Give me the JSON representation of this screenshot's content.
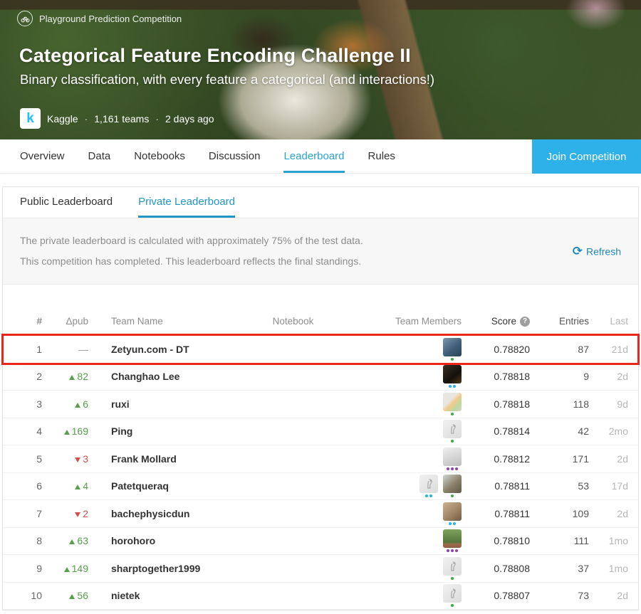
{
  "banner": {
    "category_label": "Playground Prediction Competition",
    "title": "Categorical Feature Encoding Challenge II",
    "subtitle": "Binary classification, with every feature a categorical (and interactions!)",
    "logo_letter": "k",
    "organizer": "Kaggle",
    "teams_count": "1,161 teams",
    "posted": "2 days ago"
  },
  "nav": {
    "tabs": [
      {
        "label": "Overview",
        "active": false
      },
      {
        "label": "Data",
        "active": false
      },
      {
        "label": "Notebooks",
        "active": false
      },
      {
        "label": "Discussion",
        "active": false
      },
      {
        "label": "Leaderboard",
        "active": true
      },
      {
        "label": "Rules",
        "active": false
      }
    ],
    "join_button": "Join Competition"
  },
  "leaderboard": {
    "tabs": [
      {
        "label": "Public Leaderboard",
        "active": false
      },
      {
        "label": "Private Leaderboard",
        "active": true
      }
    ],
    "info_lines": [
      "The private leaderboard is calculated with approximately 75% of the test data.",
      "This competition has completed. This leaderboard reflects the final standings."
    ],
    "refresh_label": "Refresh",
    "columns": {
      "rank": "#",
      "delta": "Δpub",
      "team": "Team Name",
      "notebook": "Notebook",
      "members": "Team Members",
      "score": "Score",
      "entries": "Entries",
      "last": "Last"
    },
    "rows": [
      {
        "rank": "1",
        "delta_dir": "none",
        "delta": "—",
        "team": "Zetyun.com - DT",
        "score": "0.78820",
        "entries": "87",
        "last": "21d",
        "highlight": true,
        "members": [
          {
            "type": "photo",
            "bg": "linear-gradient(140deg,#7d97ad,#3f5e7a 55%,#2b4257)",
            "dots": [
              "green"
            ]
          }
        ]
      },
      {
        "rank": "2",
        "delta_dir": "up",
        "delta": "82",
        "team": "Changhao Lee",
        "score": "0.78818",
        "entries": "9",
        "last": "2d",
        "highlight": false,
        "members": [
          {
            "type": "photo",
            "bg": "linear-gradient(140deg,#3a3026,#14100b 60%,#4d3b1e)",
            "dots": [
              "blue",
              "blue"
            ]
          }
        ]
      },
      {
        "rank": "3",
        "delta_dir": "up",
        "delta": "6",
        "team": "ruxi",
        "score": "0.78818",
        "entries": "118",
        "last": "9d",
        "highlight": false,
        "members": [
          {
            "type": "photo",
            "bg": "linear-gradient(135deg,#e9e6e1 40%,#f3c98a 55%,#bcd9a0 75%,#d8d4cf)",
            "dots": [
              "green"
            ]
          }
        ]
      },
      {
        "rank": "4",
        "delta_dir": "up",
        "delta": "169",
        "team": "Ping",
        "score": "0.78814",
        "entries": "42",
        "last": "2mo",
        "highlight": false,
        "members": [
          {
            "type": "default",
            "dots": [
              "green"
            ]
          }
        ]
      },
      {
        "rank": "5",
        "delta_dir": "down",
        "delta": "3",
        "team": "Frank Mollard",
        "score": "0.78812",
        "entries": "171",
        "last": "2d",
        "highlight": false,
        "members": [
          {
            "type": "photo",
            "bg": "linear-gradient(160deg,#efefef,#d2d2d2 60%,#bdbdbd)",
            "dots": [
              "purple",
              "purple",
              "purple"
            ]
          }
        ]
      },
      {
        "rank": "6",
        "delta_dir": "up",
        "delta": "4",
        "team": "Patetqueraq",
        "score": "0.78811",
        "entries": "53",
        "last": "17d",
        "highlight": false,
        "members": [
          {
            "type": "default",
            "dots": [
              "blue",
              "blue"
            ]
          },
          {
            "type": "photo",
            "bg": "linear-gradient(140deg,#cfd8d2,#8a7f6a 55%,#5f5a48)",
            "dots": [
              "green"
            ]
          }
        ]
      },
      {
        "rank": "7",
        "delta_dir": "down",
        "delta": "2",
        "team": "bachephysicdun",
        "score": "0.78811",
        "entries": "109",
        "last": "2d",
        "highlight": false,
        "members": [
          {
            "type": "photo",
            "bg": "linear-gradient(140deg,#c9b394,#9d8262 60%,#6e5a42)",
            "dots": [
              "blue",
              "blue"
            ]
          }
        ]
      },
      {
        "rank": "8",
        "delta_dir": "up",
        "delta": "63",
        "team": "horohoro",
        "score": "0.78810",
        "entries": "111",
        "last": "1mo",
        "highlight": false,
        "members": [
          {
            "type": "photo",
            "bg": "linear-gradient(180deg,#7fa35c,#54743b 70%,#9c6b4a 80%,#8a5d3e)",
            "dots": [
              "purple",
              "purple",
              "purple"
            ]
          }
        ]
      },
      {
        "rank": "9",
        "delta_dir": "up",
        "delta": "149",
        "team": "sharptogether1999",
        "score": "0.78808",
        "entries": "37",
        "last": "1mo",
        "highlight": false,
        "members": [
          {
            "type": "default",
            "dots": [
              "green"
            ]
          }
        ]
      },
      {
        "rank": "10",
        "delta_dir": "up",
        "delta": "56",
        "team": "nietek",
        "score": "0.78807",
        "entries": "73",
        "last": "2d",
        "highlight": false,
        "members": [
          {
            "type": "default",
            "dots": [
              "green"
            ]
          }
        ]
      }
    ]
  },
  "colors": {
    "kaggle_blue": "#20beff",
    "join_button_blue": "#2eb1e8",
    "active_tab_blue": "#2aa3d2",
    "link_blue": "#2196c4",
    "up_green": "#57a04b",
    "down_red": "#cf5148",
    "highlight_red": "#e8261a",
    "dots": {
      "green": "#3fab44",
      "blue": "#29b3e8",
      "purple": "#8e44ad"
    }
  }
}
